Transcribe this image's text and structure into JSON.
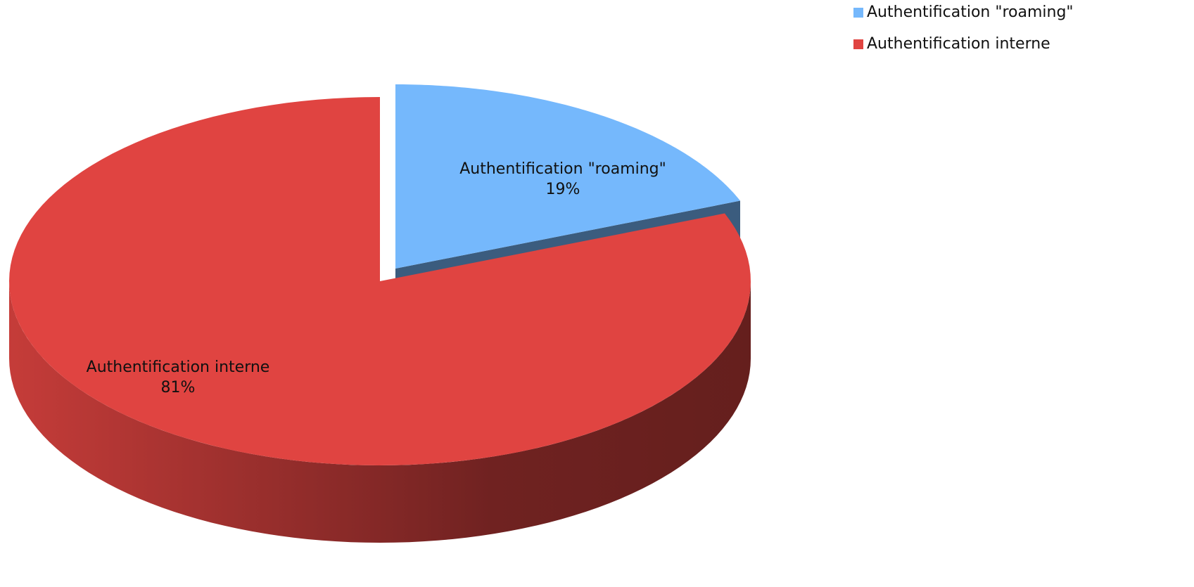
{
  "chart_data": {
    "type": "pie",
    "categories": [
      "Authentification \"roaming\"",
      "Authentification interne"
    ],
    "values": [
      19,
      81
    ],
    "value_labels": [
      "19%",
      "81%"
    ],
    "colors": [
      "#75b8fc",
      "#e04441"
    ],
    "legend": "top-right"
  }
}
